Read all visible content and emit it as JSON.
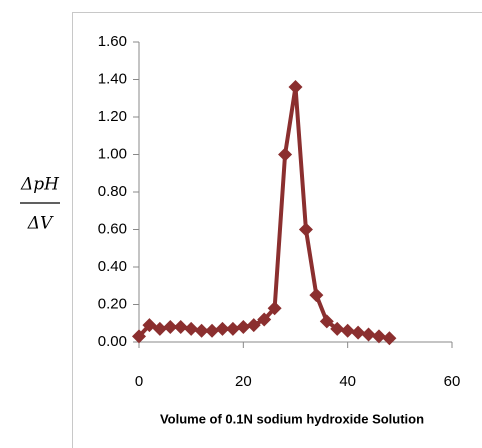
{
  "chart_data": {
    "type": "line",
    "y_label_numerator": "ΔpH",
    "y_label_denominator": "ΔV",
    "x_label": "Volume of 0.1N sodium hydroxide Solution",
    "x": [
      0,
      2,
      4,
      6,
      8,
      10,
      12,
      14,
      16,
      18,
      20,
      22,
      24,
      26,
      28,
      30,
      32,
      34,
      36,
      38,
      40,
      42,
      44,
      46,
      48
    ],
    "series": [
      {
        "color": "#8b2f2f",
        "values": [
          0.03,
          0.09,
          0.07,
          0.08,
          0.08,
          0.07,
          0.06,
          0.06,
          0.07,
          0.07,
          0.08,
          0.09,
          0.12,
          0.18,
          1.0,
          1.36,
          0.6,
          0.25,
          0.11,
          0.07,
          0.06,
          0.05,
          0.04,
          0.03,
          0.02
        ]
      }
    ],
    "xlim": [
      0,
      60
    ],
    "xticks": [
      0,
      20,
      40,
      60
    ],
    "ylim": [
      0,
      1.6
    ],
    "yticks": [
      {
        "value": 0,
        "label": "0.00"
      },
      {
        "value": 0.2,
        "label": "0.20"
      },
      {
        "value": 0.4,
        "label": "0.40"
      },
      {
        "value": 0.6,
        "label": "0.60"
      },
      {
        "value": 0.8,
        "label": "0.80"
      },
      {
        "value": 1.0,
        "label": "1.00"
      },
      {
        "value": 1.2,
        "label": "1.20"
      },
      {
        "value": 1.4,
        "label": "1.40"
      },
      {
        "value": 1.6,
        "label": "1.60"
      }
    ]
  }
}
